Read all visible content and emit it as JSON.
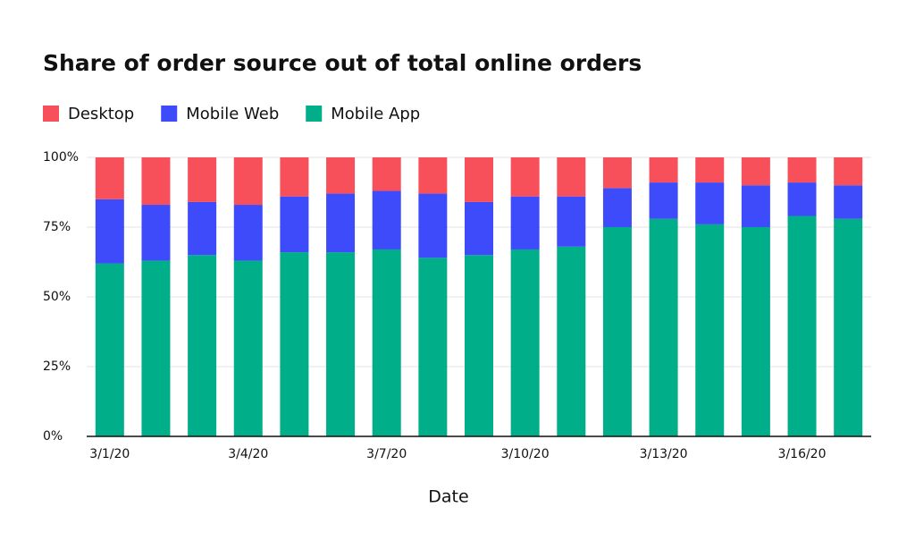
{
  "chart_data": {
    "type": "stacked_bar",
    "title": "Share of order source out of total online orders",
    "x_label": "Date",
    "categories": [
      "3/1/20",
      null,
      null,
      "3/4/20",
      null,
      null,
      "3/7/20",
      null,
      null,
      "3/10/20",
      null,
      null,
      "3/13/20",
      null,
      null,
      "3/16/20",
      null
    ],
    "series": [
      {
        "name": "Desktop",
        "color": "#f7505a",
        "values": [
          15,
          17,
          16,
          17,
          14,
          13,
          12,
          13,
          16,
          14,
          14,
          11,
          9,
          9,
          10,
          9,
          10
        ]
      },
      {
        "name": "Mobile Web",
        "color": "#3d4bfa",
        "values": [
          23,
          20,
          19,
          20,
          20,
          21,
          21,
          23,
          19,
          19,
          18,
          14,
          13,
          15,
          15,
          12,
          12
        ]
      },
      {
        "name": "Mobile App",
        "color": "#00ae89",
        "values": [
          62,
          63,
          65,
          63,
          66,
          66,
          67,
          64,
          65,
          67,
          68,
          75,
          78,
          76,
          75,
          79,
          78
        ]
      }
    ],
    "ylim": [
      0,
      100
    ],
    "yticks": [
      {
        "value": 0,
        "label": "0%"
      },
      {
        "value": 25,
        "label": "25%"
      },
      {
        "value": 50,
        "label": "50%"
      },
      {
        "value": 75,
        "label": "75%"
      },
      {
        "value": 100,
        "label": "100%"
      }
    ],
    "grid": true,
    "legend": "top-left"
  }
}
